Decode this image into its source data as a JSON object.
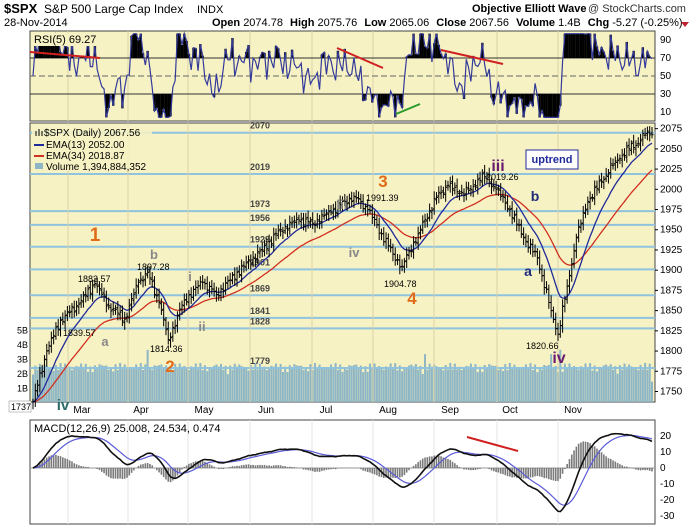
{
  "header": {
    "symbol": "$SPX",
    "name": "S&P 500 Large Cap Index",
    "exchange": "INDX",
    "site": "Objective Elliott Wave",
    "copyright": "@ StockCharts.com",
    "date": "28-Nov-2014",
    "open_label": "Open",
    "open": "2074.78",
    "high_label": "High",
    "high": "2075.76",
    "low_label": "Low",
    "low": "2065.06",
    "close_label": "Close",
    "close": "2067.56",
    "volume_label": "Volume",
    "volume": "1.4B",
    "chg_label": "Chg",
    "chg": "-5.27 (-0.25%)"
  },
  "rsi_panel": {
    "label": "RSI(5) 69.27",
    "ticks": [
      90,
      70,
      50,
      30,
      10
    ],
    "levels": [
      70,
      30
    ]
  },
  "price_panel": {
    "legend": [
      "$SPX (Daily) 2067.56",
      "EMA(13) 2052.00",
      "EMA(34) 2018.87",
      "Volume 1,394,884,352"
    ],
    "y_ticks": [
      2075,
      2050,
      2025,
      2000,
      1975,
      1950,
      1925,
      1900,
      1875,
      1850,
      1825,
      1800,
      1775,
      1750
    ],
    "volume_ticks": [
      "5B",
      "4B",
      "3B",
      "2B",
      "1B"
    ],
    "hlines": [
      2070,
      2019,
      1973,
      1956,
      1929,
      1901,
      1869,
      1841,
      1828,
      1779
    ],
    "price_labels": [
      "1883.57",
      "1897.28",
      "1839.57",
      "1814.36",
      "1991.39",
      "1904.78",
      "2019.26",
      "1820.66",
      "1737"
    ],
    "uptrend_label": "uptrend"
  },
  "wave_labels": [
    {
      "text": "1",
      "color": "#e06c1a"
    },
    {
      "text": "2",
      "color": "#e06c1a"
    },
    {
      "text": "3",
      "color": "#e06c1a"
    },
    {
      "text": "4",
      "color": "#e06c1a"
    },
    {
      "text": "iii",
      "color": "#6a1a6e"
    },
    {
      "text": "iv",
      "color": "#6a1a6e"
    },
    {
      "text": "iv",
      "color": "#2b6a6a"
    },
    {
      "text": "a",
      "color": "#888888"
    },
    {
      "text": "b",
      "color": "#888888"
    },
    {
      "text": "i",
      "color": "#888888"
    },
    {
      "text": "ii",
      "color": "#888888"
    },
    {
      "text": "iii",
      "color": "#888888"
    },
    {
      "text": "iv",
      "color": "#888888"
    },
    {
      "text": "a",
      "color": "#1f2a7a"
    },
    {
      "text": "b",
      "color": "#1f2a7a"
    }
  ],
  "macd_panel": {
    "label": "MACD(12,26,9) 25.008, 24.534, 0.474",
    "ticks": [
      20,
      10,
      0,
      -10,
      -20,
      -30
    ]
  },
  "months": [
    "Mar",
    "Apr",
    "May",
    "Jun",
    "Jul",
    "Aug",
    "Sep",
    "Oct",
    "Nov"
  ],
  "colors": {
    "panel_bg": "#f7f2c4",
    "hline": "#8fc3de",
    "ema13": "#1f2a9a",
    "ema34": "#d03020",
    "volume": "#8fb6c4",
    "trendline": "#d02020",
    "up_trendline": "#2a9a2a",
    "macd_hist": "#7a7a7a",
    "macd_signal": "#5a5ad8"
  },
  "chart_data": {
    "type": "line",
    "title": "$SPX S&P 500 Large Cap Index INDX (Daily)",
    "x_range": [
      "Feb 2014",
      "28-Nov-2014"
    ],
    "y_range": [
      1737,
      2080
    ],
    "pivots": [
      {
        "label": "iv",
        "value": 1737
      },
      {
        "label": "1",
        "value": 1883.57
      },
      {
        "label": "a",
        "value": 1839.57
      },
      {
        "label": "b",
        "value": 1897.28
      },
      {
        "label": "2",
        "value": 1814.36
      },
      {
        "label": "3",
        "value": 1991.39
      },
      {
        "label": "4",
        "value": 1904.78
      },
      {
        "label": "iii",
        "value": 2019.26
      },
      {
        "label": "iv",
        "value": 1820.66
      },
      {
        "label": "last",
        "value": 2067.56
      }
    ],
    "ema13_last": 2052.0,
    "ema34_last": 2018.87,
    "rsi5_last": 69.27,
    "macd_last": [
      25.008,
      24.534,
      0.474
    ]
  }
}
